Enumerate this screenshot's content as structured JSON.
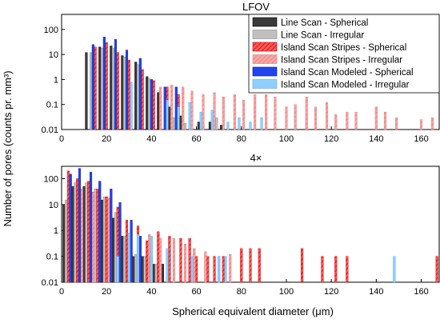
{
  "ylabel": "Number of pores (counts pr. mm³)",
  "xlabel": "Spherical equivalent diameter (μm)",
  "legend_entries": [
    {
      "label": "Line Scan - Spherical",
      "fill": "#3a3a3a",
      "stroke": "#000000",
      "hatch": false
    },
    {
      "label": "Line Scan - Irregular",
      "fill": "#c0c0c0",
      "stroke": "#8a8a8a",
      "hatch": false
    },
    {
      "label": "Island Scan Stripes - Spherical",
      "fill": "#ff5555",
      "stroke": "#d00000",
      "hatch": true
    },
    {
      "label": "Island Scan Stripes - Irregular",
      "fill": "#f7a7a7",
      "stroke": "#e47a7a",
      "hatch": true
    },
    {
      "label": "Island Scan Modeled - Spherical",
      "fill": "#2244ee",
      "stroke": "#0a1a99",
      "hatch": false
    },
    {
      "label": "Island Scan Modeled - Irregular",
      "fill": "#8fcfff",
      "stroke": "#5aa8e6",
      "hatch": false
    }
  ],
  "chart_data": [
    {
      "type": "bar",
      "title": "LFOV",
      "xlim": [
        0,
        168
      ],
      "ylim": [
        0.01,
        400
      ],
      "yscale": "log",
      "xticks": [
        0,
        20,
        40,
        60,
        80,
        100,
        120,
        140,
        160
      ],
      "yticks": [
        0.01,
        0.1,
        1,
        10,
        100
      ],
      "ytick_labels": [
        "0.01",
        "0.1",
        "1",
        "10",
        "100"
      ],
      "legend_position": "top-right",
      "series": [
        {
          "name": "Line Scan - Spherical",
          "x": [
            11,
            17,
            22,
            27,
            33,
            38,
            43,
            48,
            53,
            61,
            66,
            71
          ],
          "y": [
            12,
            20,
            22,
            9,
            5,
            1.3,
            0.3,
            0.08,
            0.035,
            0.02,
            0.02,
            0.015
          ]
        },
        {
          "name": "Line Scan - Irregular",
          "x": [
            13,
            18,
            23,
            28,
            34,
            39,
            44,
            50,
            55,
            63,
            69
          ],
          "y": [
            12,
            18,
            18,
            8,
            4,
            1.1,
            0.25,
            0.03,
            0.018,
            0.016,
            0.03
          ]
        },
        {
          "name": "Island Scan Stripes - Spherical",
          "x": [
            15,
            20,
            25,
            30,
            36,
            41,
            47,
            52
          ],
          "y": [
            20,
            30,
            12,
            6,
            2.5,
            0.9,
            0.5,
            0.25
          ]
        },
        {
          "name": "Island Scan Stripes - Irregular",
          "x": [
            44,
            49,
            54,
            58,
            63,
            68,
            72,
            77,
            81,
            86,
            91,
            95,
            100,
            104,
            109,
            113,
            118,
            122,
            127,
            131,
            140,
            144,
            149,
            160,
            165
          ],
          "y": [
            0.5,
            0.6,
            0.5,
            0.35,
            0.25,
            0.3,
            0.2,
            0.25,
            0.15,
            0.25,
            0.25,
            0.2,
            0.08,
            0.1,
            0.2,
            0.08,
            0.12,
            0.04,
            0.05,
            0.05,
            0.08,
            0.05,
            0.03,
            0.025,
            0.03
          ]
        },
        {
          "name": "Island Scan Modeled - Spherical",
          "x": [
            14,
            19,
            24,
            29,
            35,
            40,
            46,
            51
          ],
          "y": [
            25,
            50,
            40,
            15,
            7,
            1.0,
            0.5,
            0.5
          ]
        },
        {
          "name": "Island Scan Modeled - Irregular",
          "x": [
            31,
            47,
            52,
            57,
            62,
            67,
            74,
            79,
            84,
            89,
            113
          ],
          "y": [
            0.8,
            0.15,
            0.08,
            0.12,
            0.05,
            0.06,
            0.02,
            0.03,
            0.02,
            0.03,
            0.01
          ]
        }
      ]
    },
    {
      "type": "bar",
      "title": "4×",
      "xlim": [
        0,
        168
      ],
      "ylim": [
        0.01,
        300
      ],
      "yscale": "log",
      "xticks": [
        0,
        20,
        40,
        60,
        80,
        100,
        120,
        140,
        160
      ],
      "yticks": [
        0.01,
        0.1,
        1,
        10,
        100
      ],
      "ytick_labels": [
        "0.01",
        "0.1",
        "1",
        "10",
        "100"
      ],
      "legend_position": "none",
      "series": [
        {
          "name": "Line Scan - Spherical",
          "x": [
            1,
            5,
            10,
            14,
            18,
            23,
            27,
            32,
            36,
            41,
            45
          ],
          "y": [
            10,
            50,
            50,
            30,
            15,
            3,
            0.6,
            0.1,
            0.1,
            0.05,
            0.05
          ]
        },
        {
          "name": "Line Scan - Irregular",
          "x": [
            2,
            6,
            11,
            15,
            19,
            24,
            28,
            33,
            37,
            42
          ],
          "y": [
            15,
            70,
            70,
            40,
            20,
            5,
            0.6,
            0.12,
            0.1,
            0.05
          ]
        },
        {
          "name": "Island Scan Stripes - Spherical",
          "x": [
            3,
            7,
            12,
            16,
            20,
            25,
            29,
            34,
            38,
            43,
            48,
            53,
            57,
            60,
            65,
            68,
            72,
            80,
            84,
            88,
            107,
            116,
            122,
            127,
            167
          ],
          "y": [
            200,
            100,
            80,
            40,
            20,
            8,
            2.5,
            1.5,
            0.4,
            0.9,
            0.6,
            0.5,
            0.5,
            0.1,
            0.1,
            0.1,
            0.1,
            0.2,
            0.2,
            0.2,
            0.2,
            0.1,
            0.1,
            0.1,
            0.1
          ]
        },
        {
          "name": "Island Scan Stripes - Irregular",
          "x": [
            9,
            14,
            21,
            26,
            31,
            39,
            44,
            50,
            55,
            59,
            64,
            70,
            75
          ],
          "y": [
            40,
            30,
            18,
            5,
            2,
            0.7,
            0.5,
            0.5,
            0.3,
            0.2,
            0.15,
            0.1,
            0.12
          ]
        },
        {
          "name": "Island Scan Modeled - Spherical",
          "x": [
            4,
            8,
            13,
            17,
            22,
            26,
            31,
            35,
            40
          ],
          "y": [
            150,
            250,
            180,
            80,
            40,
            12,
            2.5,
            0.6,
            0.1
          ]
        },
        {
          "name": "Island Scan Modeled - Irregular",
          "x": [
            25,
            30,
            34,
            40,
            47,
            58,
            70,
            73,
            148
          ],
          "y": [
            0.1,
            0.8,
            0.7,
            0.6,
            0.2,
            0.1,
            0.1,
            0.1,
            0.1
          ]
        }
      ]
    }
  ]
}
